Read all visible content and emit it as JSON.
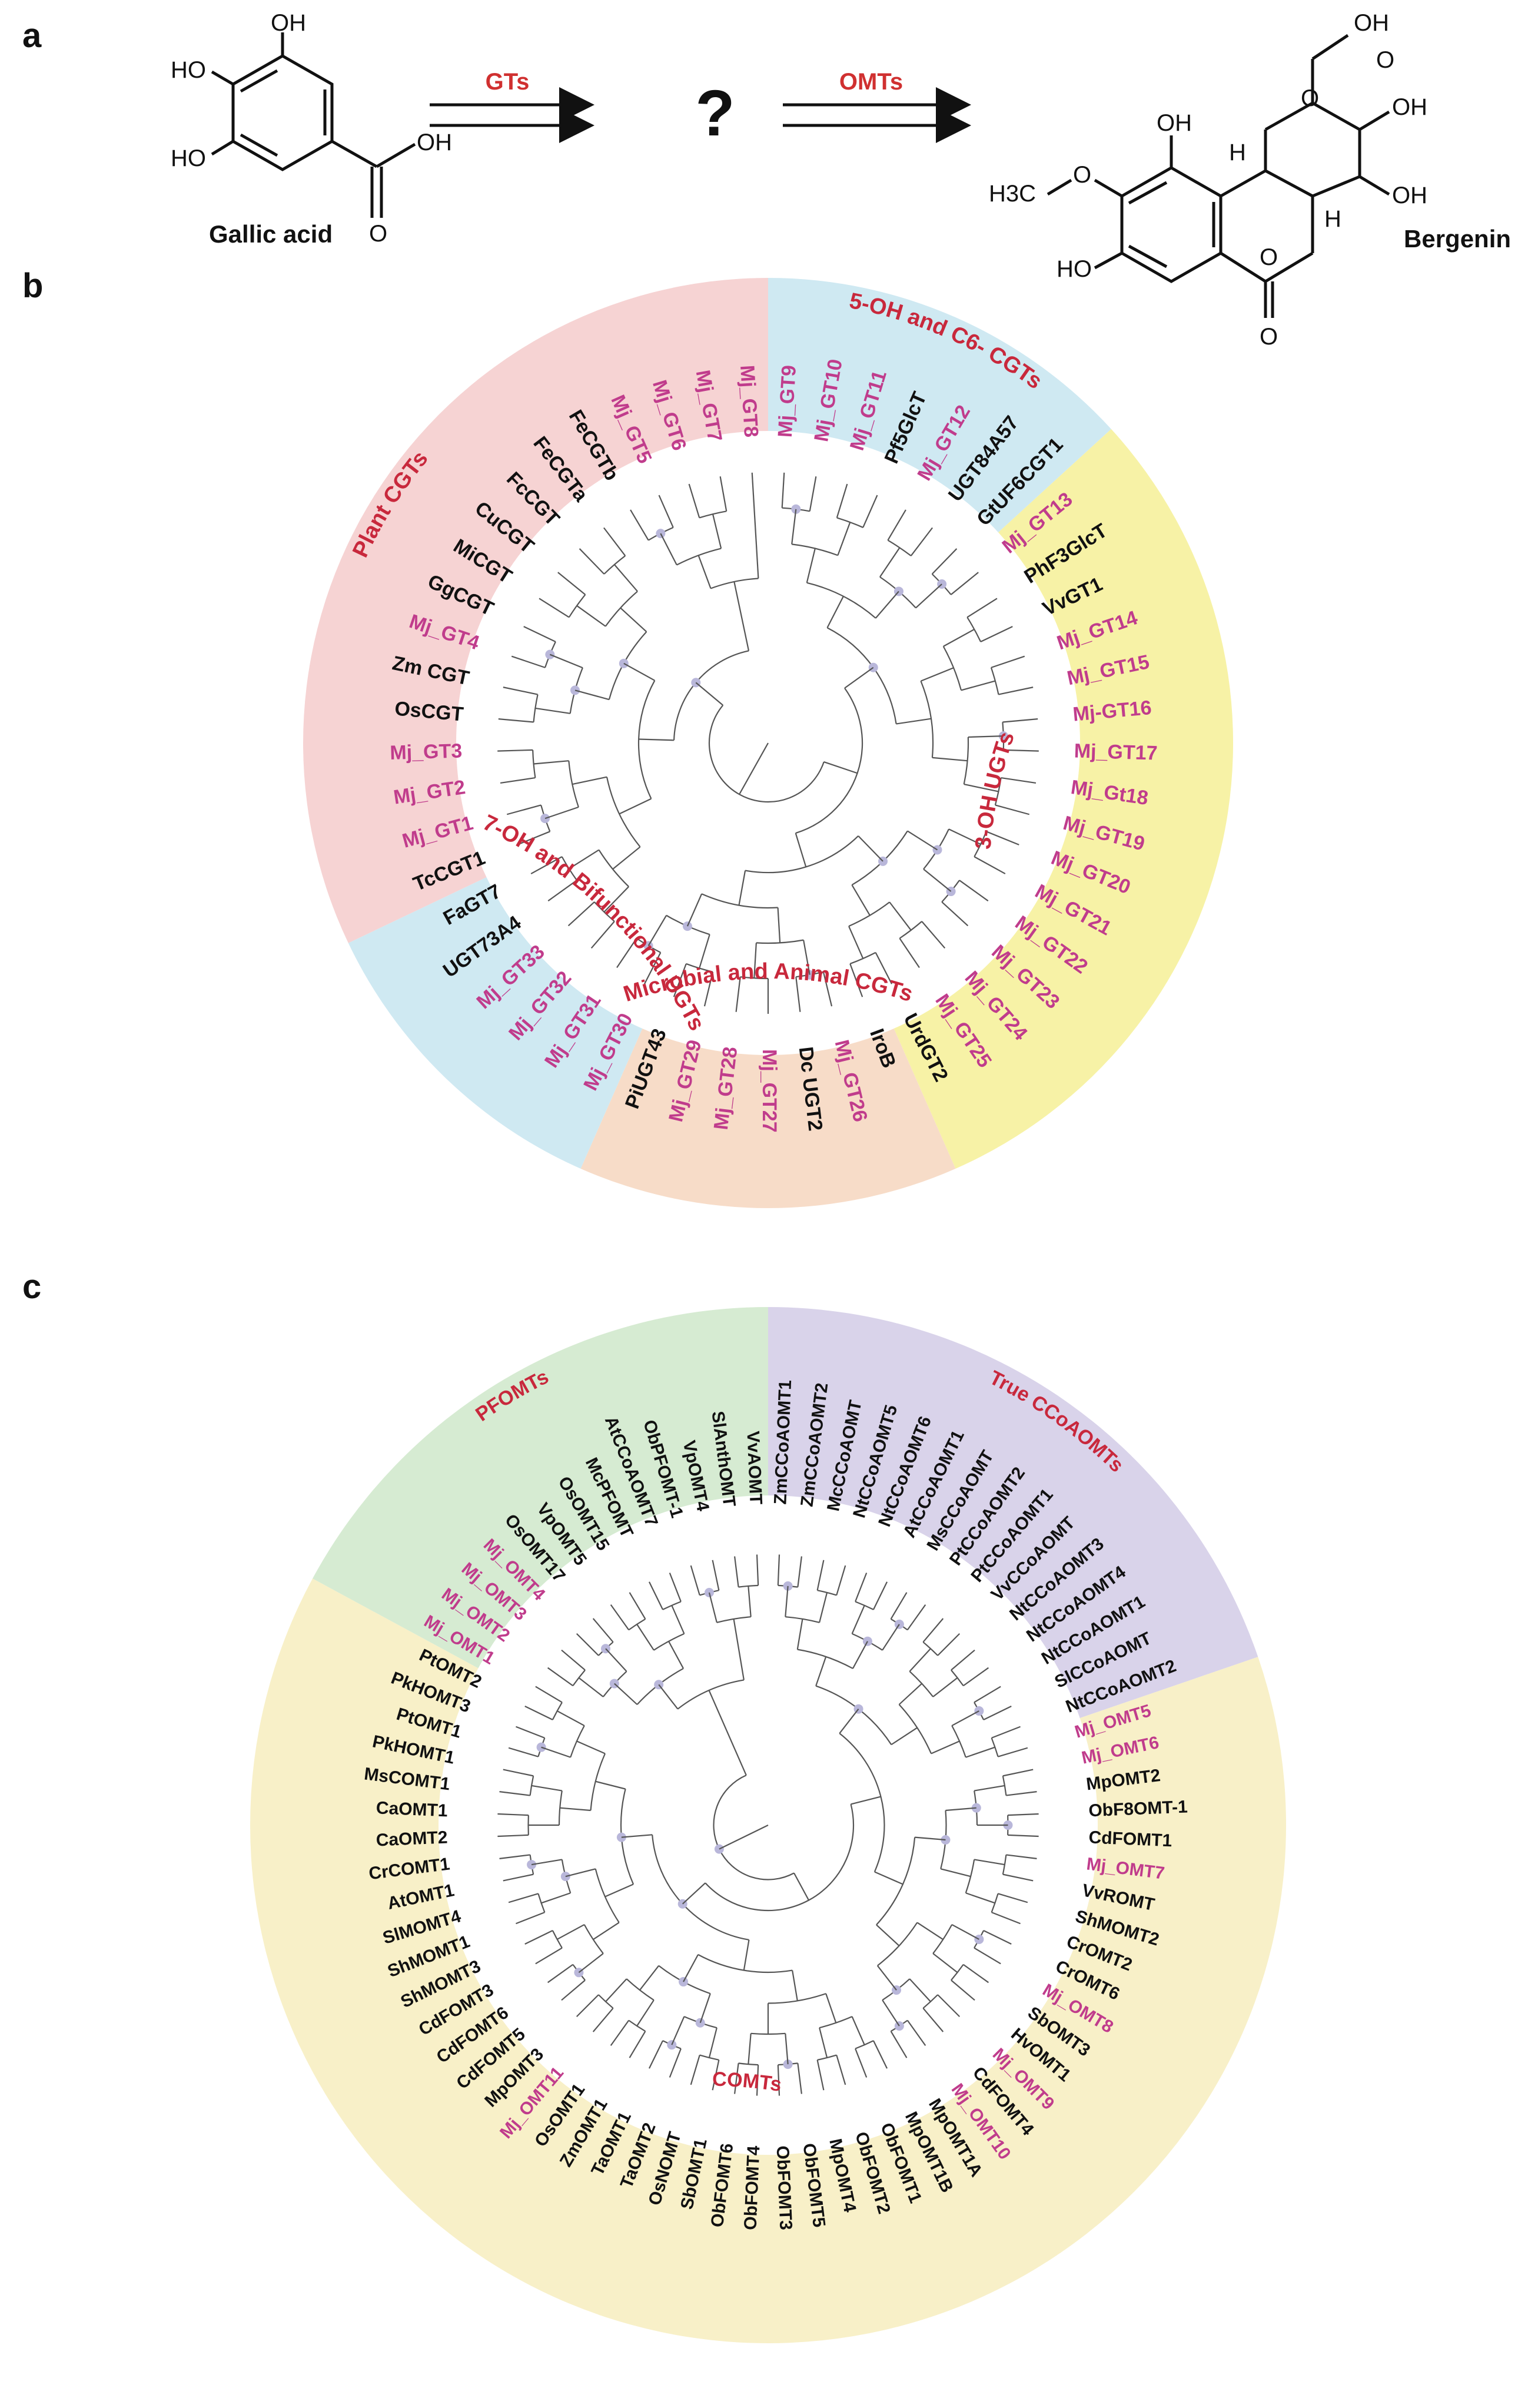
{
  "panel_a": {
    "label": "a",
    "substrate_name": "Gallic acid",
    "product_name": "Bergenin",
    "step1_enzyme": "GTs",
    "step2_enzyme": "OMTs",
    "unknown_intermediate": "?",
    "gallic_atoms": [
      "OH",
      "HO",
      "HO",
      "OH",
      "O"
    ],
    "bergenin_atoms": [
      "OH",
      "OH",
      "OH",
      "OH",
      "O",
      "H",
      "H",
      "H3C",
      "O",
      "O",
      "O",
      "HO",
      "O"
    ]
  },
  "panel_b": {
    "label": "b",
    "clades": [
      {
        "name": "Plant CGTs",
        "color": "#f6d3d3"
      },
      {
        "name": "5-OH and C6- CGTs",
        "color": "#cfe9f2"
      },
      {
        "name": "3-OH UGTs",
        "color": "#f7f2a6"
      },
      {
        "name": "Microbial and Animal CGTs",
        "color": "#f7dcc8"
      },
      {
        "name": "7-OH and Bifunctional UGTs",
        "color": "#cfe9f2"
      }
    ],
    "leaves": [
      "Mj_GT9",
      "Mj_GT10",
      "Mj_GT11",
      "Pf5GlcT",
      "Mj_GT12",
      "UGT84A57",
      "GtUF6CGT1",
      "Mj_GT13",
      "PhF3GlcT",
      "VvGT1",
      "Mj_GT14",
      "Mj_GT15",
      "Mj-GT16",
      "Mj_GT17",
      "Mj_Gt18",
      "Mj_GT19",
      "Mj_GT20",
      "Mj_GT21",
      "Mj_GT22",
      "Mj_GT23",
      "Mj_GT24",
      "Mj_GT25",
      "UrdGT2",
      "IroB",
      "Mj_GT26",
      "Dc UGT2",
      "Mj_GT27",
      "Mj_GT28",
      "Mj_GT29",
      "PiUGT43",
      "Mj_GT30",
      "Mj_GT31",
      "Mj_GT32",
      "Mj_GT33",
      "UGT73A4",
      "FaGT7",
      "TcCGT1",
      "Mj_GT1",
      "Mj_GT2",
      "Mj_GT3",
      "OsCGT",
      "Zm CGT",
      "Mj_GT4",
      "GgCGT",
      "MiCGT",
      "CuCGT",
      "FcCGT",
      "FeCGTa",
      "FeCGTb",
      "Mj_GT5",
      "Mj_GT6",
      "Mj_GT7",
      "Mj_GT8"
    ]
  },
  "panel_c": {
    "label": "c",
    "clades": [
      {
        "name": "PFOMTs",
        "color": "#d6ebd2"
      },
      {
        "name": "True CCoAOMTs",
        "color": "#d9d3ea"
      },
      {
        "name": "COMTs",
        "color": "#f8f0c8"
      }
    ],
    "leaves": [
      "ZmCCoAOMT1",
      "ZmCCoAOMT2",
      "McCCoAOMT",
      "NtCCoAOMT5",
      "NtCCoAOMT6",
      "AtCCoAOMT1",
      "MsCCoAOMT",
      "PtCCoAOMT2",
      "PtCCoAOMT1",
      "VvCCoAOMT",
      "NtCCoAOMT3",
      "NtCCoAOMT4",
      "NtCCoAOMT1",
      "SlCCoAOMT",
      "NtCCoAOMT2",
      "Mj_OMT5",
      "Mj_OMT6",
      "MpOMT2",
      "ObF8OMT-1",
      "CdFOMT1",
      "Mj_OMT7",
      "VvROMT",
      "ShMOMT2",
      "CrOMT2",
      "CrOMT6",
      "Mj_OMT8",
      "SbOMT3",
      "HvOMT1",
      "Mj_OMT9",
      "CdFOMT4",
      "Mj_OMT10",
      "MpOMT1A",
      "MpOMT1B",
      "ObFOMT1",
      "ObFOMT2",
      "MpOMT4",
      "ObFOMT5",
      "ObFOMT3",
      "ObFOMT4",
      "ObFOMT6",
      "SbOMT1",
      "OsNOMT",
      "TaOMT2",
      "TaOMT1",
      "ZmOMT1",
      "OsOMT1",
      "Mj_OMT11",
      "MpOMT3",
      "CdFOMT5",
      "CdFOMT6",
      "CdFOMT3",
      "ShMOMT3",
      "ShMOMT1",
      "SlMOMT4",
      "AtOMT1",
      "CrCOMT1",
      "CaOMT2",
      "CaOMT1",
      "MsCOMT1",
      "PkHOMT1",
      "PtOMT1",
      "PkHOMT3",
      "PtOMT2",
      "Mj_OMT1",
      "Mj_OMT2",
      "Mj_OMT3",
      "Mj_OMT4",
      "OsOMT17",
      "VpOMT5",
      "OsOMT15",
      "McPFOMT",
      "AtCCoAOMT7",
      "ObPFOMT-1",
      "VpOMT4",
      "SlAnthOMT",
      "VvAOMT"
    ]
  },
  "colors": {
    "highlight_text": "#c03c8c",
    "clade_label": "#c8283c",
    "enzyme_label": "#d03030",
    "branch": "#555555",
    "bootstrap_dot": "#b9b7da"
  }
}
